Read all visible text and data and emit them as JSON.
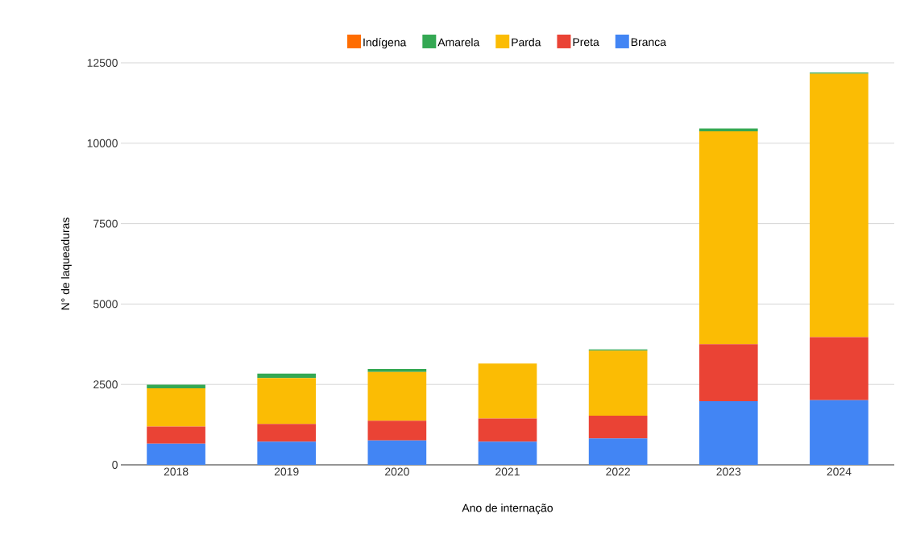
{
  "chart_data": {
    "type": "bar",
    "stacked": true,
    "xlabel": "Ano de internação",
    "ylabel": "N° de laqueaduras",
    "categories": [
      "2018",
      "2019",
      "2020",
      "2021",
      "2022",
      "2023",
      "2024"
    ],
    "series": [
      {
        "name": "Branca",
        "color": "#4285f4",
        "values": [
          660,
          720,
          760,
          720,
          820,
          1980,
          2010
        ]
      },
      {
        "name": "Preta",
        "color": "#ea4335",
        "values": [
          530,
          550,
          610,
          720,
          710,
          1770,
          1960
        ]
      },
      {
        "name": "Parda",
        "color": "#fbbc04",
        "values": [
          1190,
          1430,
          1520,
          1710,
          2020,
          6620,
          8190
        ]
      },
      {
        "name": "Amarela",
        "color": "#34a853",
        "values": [
          110,
          140,
          90,
          0,
          40,
          90,
          40
        ]
      },
      {
        "name": "Indígena",
        "color": "#ff6d01",
        "values": [
          0,
          0,
          0,
          0,
          0,
          0,
          0
        ]
      }
    ],
    "ylim": [
      0,
      12500
    ],
    "yticks": [
      0,
      2500,
      5000,
      7500,
      10000,
      12500
    ],
    "grid": "y",
    "legend": "top"
  }
}
